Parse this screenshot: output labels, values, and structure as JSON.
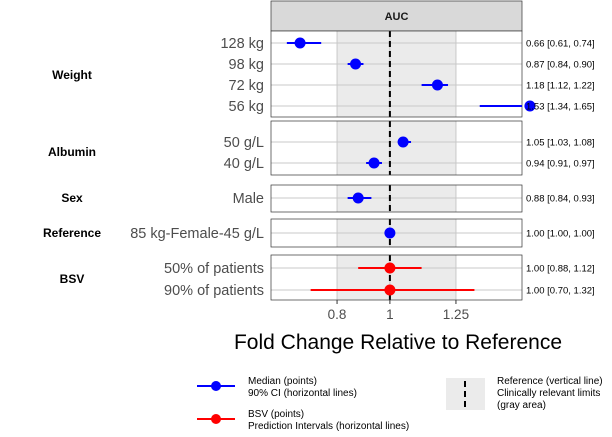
{
  "chart_data": {
    "type": "forest",
    "panel_title": "AUC",
    "xlabel": "Fold Change Relative to Reference",
    "xlim": [
      0.55,
      1.5
    ],
    "xticks": [
      {
        "value": 0.8,
        "label": "0.8"
      },
      {
        "value": 1.0,
        "label": "1"
      },
      {
        "value": 1.25,
        "label": "1.25"
      }
    ],
    "reference_value": 1.0,
    "relevant_limits": [
      0.8,
      1.25
    ],
    "colors": {
      "median": "#0000ff",
      "bsv": "#ff0000",
      "shade": "#ebebeb",
      "strip": "#d9d9d9",
      "grid": "#c8c8c8",
      "reference": "#000000"
    },
    "groups": [
      {
        "name": "Weight",
        "rows": [
          {
            "label": "128 kg",
            "value": 0.66,
            "lo": 0.61,
            "hi": 0.74,
            "kind": "median",
            "text": "0.66 [0.61, 0.74]"
          },
          {
            "label": "98 kg",
            "value": 0.87,
            "lo": 0.84,
            "hi": 0.9,
            "kind": "median",
            "text": "0.87 [0.84, 0.90]"
          },
          {
            "label": "72 kg",
            "value": 1.18,
            "lo": 1.12,
            "hi": 1.22,
            "kind": "median",
            "text": "1.18 [1.12, 1.22]"
          },
          {
            "label": "56 kg",
            "value": 1.53,
            "lo": 1.34,
            "hi": 1.65,
            "kind": "median",
            "text": "1.53 [1.34, 1.65]"
          }
        ]
      },
      {
        "name": "Albumin",
        "rows": [
          {
            "label": "50 g/L",
            "value": 1.05,
            "lo": 1.03,
            "hi": 1.08,
            "kind": "median",
            "text": "1.05 [1.03, 1.08]"
          },
          {
            "label": "40 g/L",
            "value": 0.94,
            "lo": 0.91,
            "hi": 0.97,
            "kind": "median",
            "text": "0.94 [0.91, 0.97]"
          }
        ]
      },
      {
        "name": "Sex",
        "rows": [
          {
            "label": "Male",
            "value": 0.88,
            "lo": 0.84,
            "hi": 0.93,
            "kind": "median",
            "text": "0.88 [0.84, 0.93]"
          }
        ]
      },
      {
        "name": "Reference",
        "rows": [
          {
            "label": "85 kg-Female-45 g/L",
            "value": 1.0,
            "lo": 1.0,
            "hi": 1.0,
            "kind": "median",
            "text": "1.00 [1.00, 1.00]"
          }
        ]
      },
      {
        "name": "BSV",
        "rows": [
          {
            "label": "50% of patients",
            "value": 1.0,
            "lo": 0.88,
            "hi": 1.12,
            "kind": "bsv",
            "text": "1.00 [0.88, 1.12]"
          },
          {
            "label": "90% of patients",
            "value": 1.0,
            "lo": 0.7,
            "hi": 1.32,
            "kind": "bsv",
            "text": "1.00 [0.70, 1.32]"
          }
        ]
      }
    ],
    "legend": {
      "median_line1": "Median (points)",
      "median_line2": "90% CI (horizontal lines)",
      "bsv_line1": "BSV (points)",
      "bsv_line2": "Prediction Intervals (horizontal lines)",
      "ref_line1": "Reference (vertical line)",
      "ref_line2": "Clinically relevant limits",
      "ref_line3": "(gray area)"
    }
  }
}
